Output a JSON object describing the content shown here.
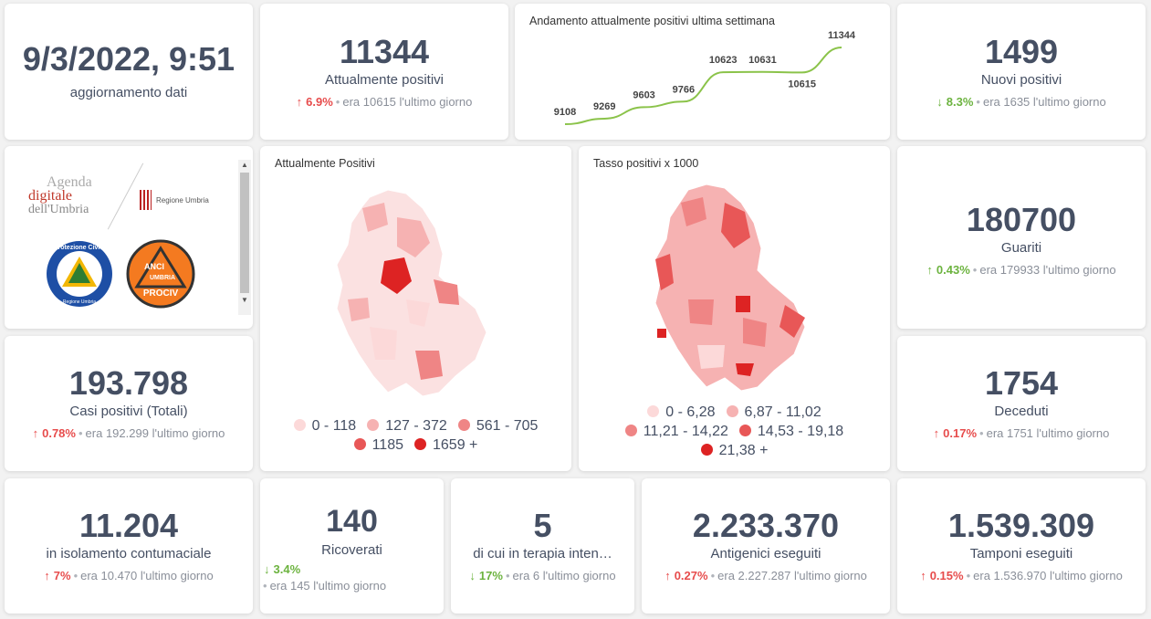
{
  "update": {
    "datetime": "9/3/2022, 9:51",
    "label": "aggiornamento dati"
  },
  "attualmente_positivi": {
    "value": "11344",
    "label": "Attualmente positivi",
    "pct": "6.9%",
    "prev": "era 10615",
    "suffix": "l'ultimo giorno",
    "trend": "up"
  },
  "trend_chart": {
    "title": "Andamento attualmente positivi ultima settimana",
    "chart_data": {
      "type": "line",
      "values": [
        9108,
        9269,
        9603,
        9766,
        10623,
        10631,
        10615,
        11344
      ],
      "color": "#8bc34a"
    }
  },
  "nuovi_positivi": {
    "value": "1499",
    "label": "Nuovi positivi",
    "pct": "8.3%",
    "prev": "era 1635",
    "suffix": "l'ultimo giorno",
    "trend": "down"
  },
  "logos": {
    "agenda_line1": "Agenda",
    "agenda_line2": "digitale",
    "agenda_line3": "dell'Umbria",
    "regione": "Regione Umbria",
    "pc_text": "Protezione Civile",
    "pc_sub": "Regione Umbria",
    "anci_top": "ANCI",
    "anci_mid": "UMBRIA",
    "anci_bottom": "PROCIV"
  },
  "map1": {
    "title": "Attualmente Positivi",
    "legend": [
      "0 - 118",
      "127 - 372",
      "561 - 705",
      "1185",
      "1659 +"
    ]
  },
  "map2": {
    "title": "Tasso positivi x 1000",
    "legend": [
      "0 - 6,28",
      "6,87 - 11,02",
      "11,21 - 14,22",
      "14,53 - 19,18",
      "21,38 +"
    ]
  },
  "legend_colors": [
    "#fcd9d9",
    "#f6b2b2",
    "#ef8585",
    "#e85757",
    "#dd2323"
  ],
  "guariti": {
    "value": "180700",
    "label": "Guariti",
    "pct": "0.43%",
    "prev": "era 179933",
    "suffix": "l'ultimo giorno",
    "trend": "up-green"
  },
  "casi_totali": {
    "value": "193.798",
    "label": "Casi positivi (Totali)",
    "pct": "0.78%",
    "prev": "era 192.299",
    "suffix": "l'ultimo giorno",
    "trend": "up"
  },
  "deceduti": {
    "value": "1754",
    "label": "Deceduti",
    "pct": "0.17%",
    "prev": "era 1751",
    "suffix": "l'ultimo giorno",
    "trend": "up"
  },
  "isolamento": {
    "value": "11.204",
    "label": "in isolamento contumaciale",
    "pct": "7%",
    "prev": "era 10.470",
    "suffix": "l'ultimo giorno",
    "trend": "up"
  },
  "ricoverati": {
    "value": "140",
    "label": "Ricoverati",
    "pct": "3.4%",
    "prev": "era 145",
    "suffix": "l'ultimo giorno",
    "trend": "down"
  },
  "terapia": {
    "value": "5",
    "label": "di cui in terapia inten…",
    "pct": "17%",
    "prev": "era 6",
    "suffix": "l'ultimo giorno",
    "trend": "down"
  },
  "antigenici": {
    "value": "2.233.370",
    "label": "Antigenici eseguiti",
    "pct": "0.27%",
    "prev": "era 2.227.287",
    "suffix": "l'ultimo giorno",
    "trend": "up"
  },
  "tamponi": {
    "value": "1.539.309",
    "label": "Tamponi eseguiti",
    "pct": "0.15%",
    "prev": "era 1.536.970",
    "suffix": "l'ultimo giorno",
    "trend": "up"
  }
}
